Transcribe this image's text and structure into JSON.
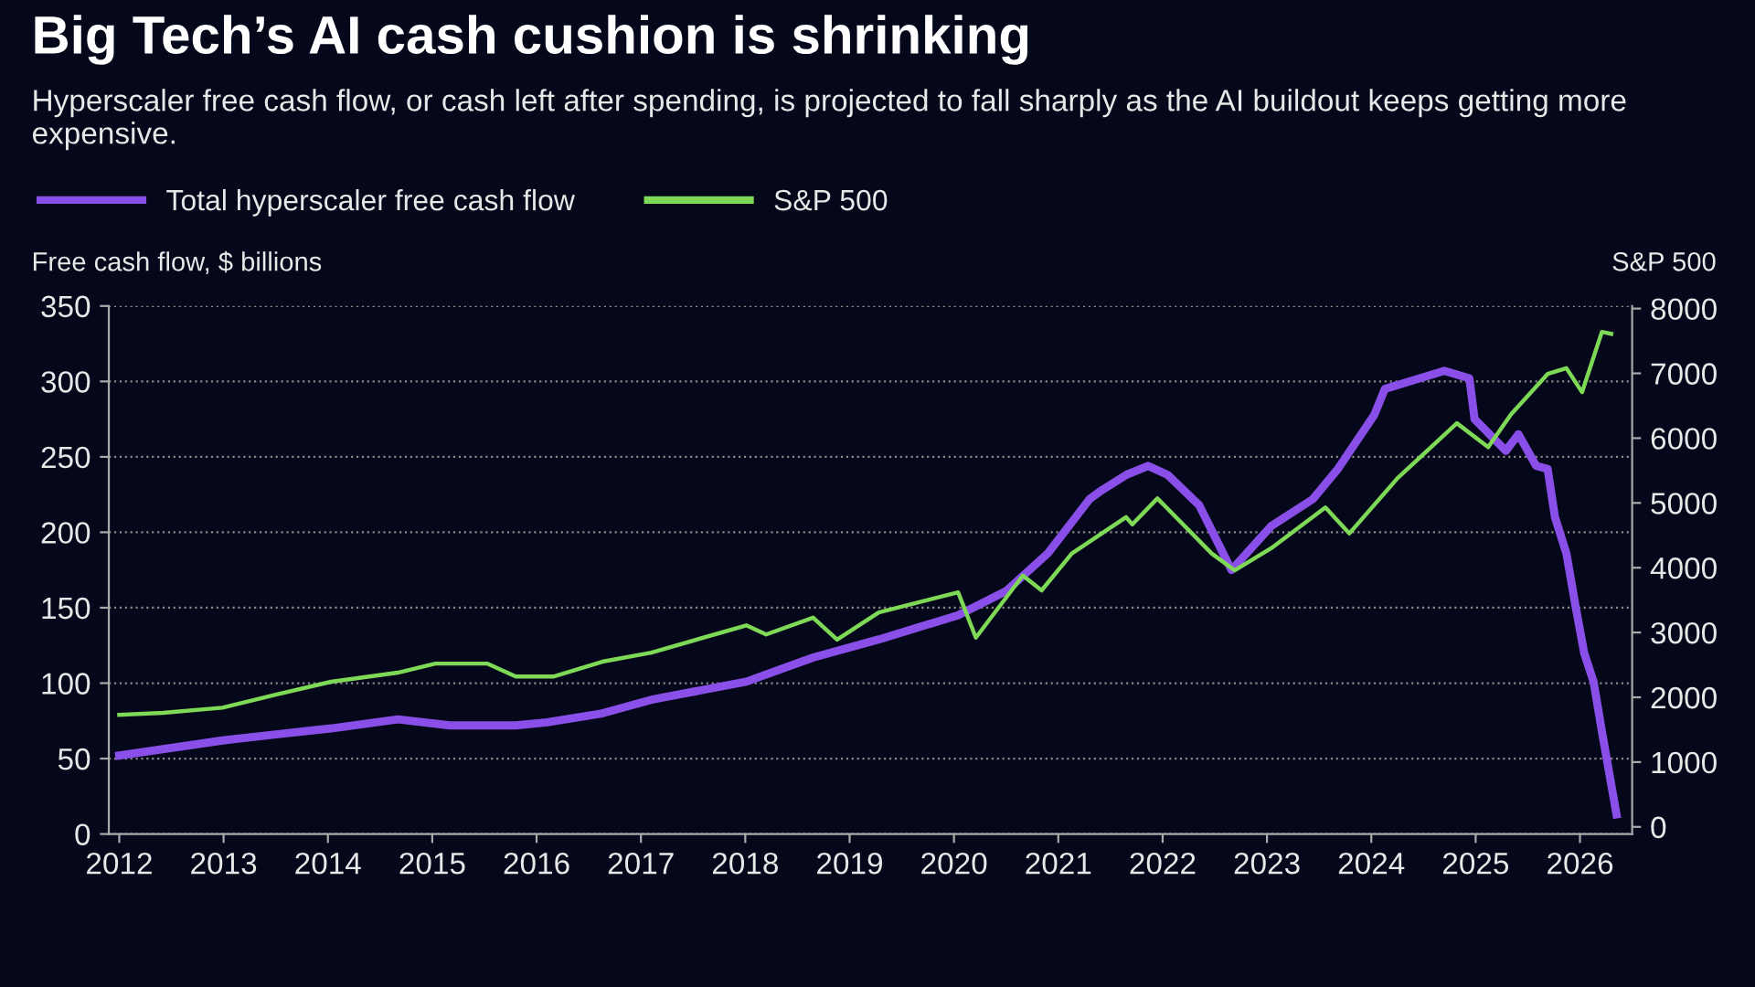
{
  "chart_data": {
    "type": "line",
    "title": "Big Tech’s AI cash cushion is shrinking",
    "subtitle": "Hyperscaler free cash flow, or cash left after spending, is projected to fall sharply as the AI buildout keeps getting more expensive.",
    "ylabel": "Free cash flow, $ billions",
    "y2label": "S&P 500",
    "series": [
      {
        "name": "Total hyperscaler free cash flow",
        "color": "#8a4fe8",
        "x": [
          2012.0,
          2012.99,
          2013.5,
          2014.03,
          2014.67,
          2015.17,
          2015.8,
          2016.1,
          2016.63,
          2017.1,
          2018.01,
          2018.65,
          2019.28,
          2020.04,
          2020.5,
          2020.9,
          2021.3,
          2021.42,
          2021.65,
          2021.86,
          2022.05,
          2022.35,
          2022.66,
          2023.04,
          2023.44,
          2023.68,
          2024.03,
          2024.13,
          2024.7,
          2024.94,
          2024.99,
          2025.29,
          2025.41,
          2025.58,
          2025.69,
          2025.76,
          2025.87,
          2025.96,
          2026.04,
          2026.13,
          2026.21,
          2026.35
        ],
        "values": [
          52,
          62,
          66,
          70,
          76,
          72,
          72,
          74,
          80,
          89,
          101,
          117,
          129,
          145,
          161,
          186,
          222,
          228,
          238,
          244,
          238,
          218,
          175,
          204,
          222,
          242,
          278,
          295,
          307,
          302,
          275,
          254,
          265,
          244,
          242,
          210,
          186,
          150,
          120,
          101,
          68,
          13
        ]
      },
      {
        "name": "S&P 500",
        "color": "#7ed957",
        "axis": "y2",
        "x": [
          2012.0,
          2012.42,
          2012.99,
          2013.5,
          2014.03,
          2014.67,
          2015.03,
          2015.53,
          2015.8,
          2016.16,
          2016.63,
          2017.1,
          2018.01,
          2018.2,
          2018.65,
          2018.88,
          2019.28,
          2020.04,
          2020.21,
          2020.66,
          2020.84,
          2021.13,
          2021.65,
          2021.71,
          2021.95,
          2022.47,
          2022.69,
          2023.04,
          2023.56,
          2023.79,
          2024.25,
          2024.82,
          2025.12,
          2025.34,
          2025.69,
          2025.87,
          2026.02,
          2026.21,
          2026.3
        ],
        "values": [
          1730,
          1760,
          1840,
          2040,
          2240,
          2380,
          2520,
          2520,
          2320,
          2320,
          2550,
          2690,
          3110,
          2970,
          3230,
          2890,
          3310,
          3620,
          2920,
          3880,
          3650,
          4220,
          4780,
          4670,
          5070,
          4220,
          3960,
          4300,
          4930,
          4530,
          5380,
          6230,
          5860,
          6370,
          6990,
          7080,
          6710,
          7640,
          7610
        ]
      }
    ],
    "xlim": [
      2011.9,
      2026.5
    ],
    "xticks": [
      2012,
      2013,
      2014,
      2015,
      2016,
      2017,
      2018,
      2019,
      2020,
      2021,
      2022,
      2023,
      2024,
      2025,
      2026
    ],
    "ylim": [
      0,
      350
    ],
    "yticks": [
      0,
      50,
      100,
      150,
      200,
      250,
      300,
      350
    ],
    "y2lim": [
      -110,
      8040
    ],
    "y2ticks": [
      0,
      1000,
      2000,
      3000,
      4000,
      5000,
      6000,
      7000,
      8000
    ],
    "grid": "y",
    "legend": "top left",
    "line_style": "solid",
    "marker": "none"
  }
}
